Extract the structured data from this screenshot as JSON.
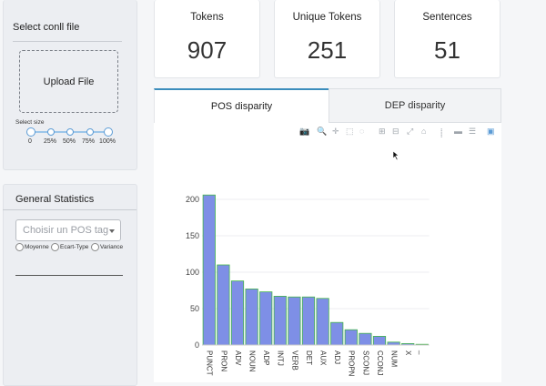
{
  "sidebar": {
    "file_title": "Select conll file",
    "upload_label": "Upload File",
    "size_label": "Select size",
    "size_ticks": [
      "0",
      "25%",
      "50%",
      "75%",
      "100%"
    ],
    "size_value": [
      0,
      100
    ]
  },
  "stats": {
    "title": "General Statistics",
    "select_placeholder": "Choisir un POS tag",
    "radios": [
      "Moyenne",
      "Ecart-Type",
      "Variance"
    ]
  },
  "cards": [
    {
      "label": "Tokens",
      "value": "907"
    },
    {
      "label": "Unique Tokens",
      "value": "251"
    },
    {
      "label": "Sentences",
      "value": "51"
    }
  ],
  "tabs": [
    "POS disparity",
    "DEP disparity"
  ],
  "colors": {
    "bar": "#7e8fe6",
    "bar_outline": "#43b54a",
    "accent": "#3c8dbc"
  },
  "chart_data": {
    "type": "bar",
    "categories": [
      "PUNCT",
      "PRON",
      "ADV",
      "NOUN",
      "ADP",
      "INTJ",
      "VERB",
      "DET",
      "AUX",
      "ADJ",
      "PROPN",
      "SCONJ",
      "CCONJ",
      "NUM",
      "X",
      "_"
    ],
    "values": [
      206,
      110,
      88,
      77,
      73,
      67,
      66,
      66,
      64,
      31,
      21,
      16,
      12,
      4,
      2,
      1
    ],
    "ylim": [
      0,
      210
    ],
    "yticks": [
      "0",
      "50",
      "100",
      "150",
      "200"
    ],
    "grid": true
  }
}
